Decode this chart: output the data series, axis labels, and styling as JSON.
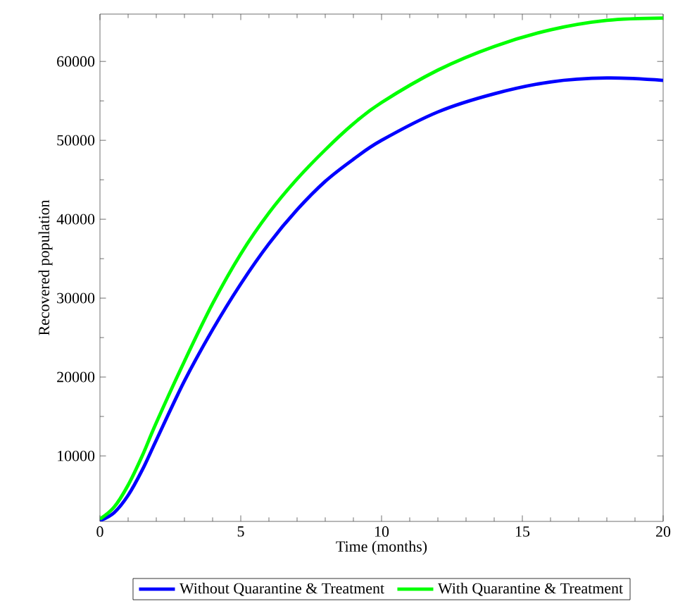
{
  "chart_data": {
    "type": "line",
    "xlabel": "Time (months)",
    "ylabel": "Recovered population",
    "xlim": [
      0,
      20
    ],
    "ylim": [
      1700,
      66000
    ],
    "xticks": [
      0,
      5,
      10,
      15,
      20
    ],
    "yticks": [
      10000,
      20000,
      30000,
      40000,
      50000,
      60000
    ],
    "grid": false,
    "legend": "bottom",
    "marker": "none",
    "line_style": "solid",
    "series": [
      {
        "name": "Without Quarantine & Treatment",
        "color": "#0000ff",
        "x": [
          0,
          0.5,
          1,
          1.5,
          2,
          3,
          4,
          5,
          6,
          7,
          8,
          9,
          10,
          12,
          14,
          16,
          18,
          20
        ],
        "values": [
          1800,
          2800,
          5000,
          8200,
          12000,
          19500,
          26000,
          31800,
          36900,
          41200,
          44800,
          47600,
          50000,
          53600,
          55900,
          57400,
          57900,
          57600
        ]
      },
      {
        "name": "With Quarantine & Treatment",
        "color": "#00ff00",
        "x": [
          0,
          0.5,
          1,
          1.5,
          2,
          3,
          4,
          5,
          6,
          7,
          8,
          9,
          10,
          12,
          14,
          16,
          18,
          20
        ],
        "values": [
          2000,
          3500,
          6300,
          10000,
          14200,
          22000,
          29300,
          35600,
          40800,
          45100,
          48800,
          52100,
          54800,
          58900,
          61900,
          64000,
          65200,
          65500
        ]
      }
    ]
  }
}
